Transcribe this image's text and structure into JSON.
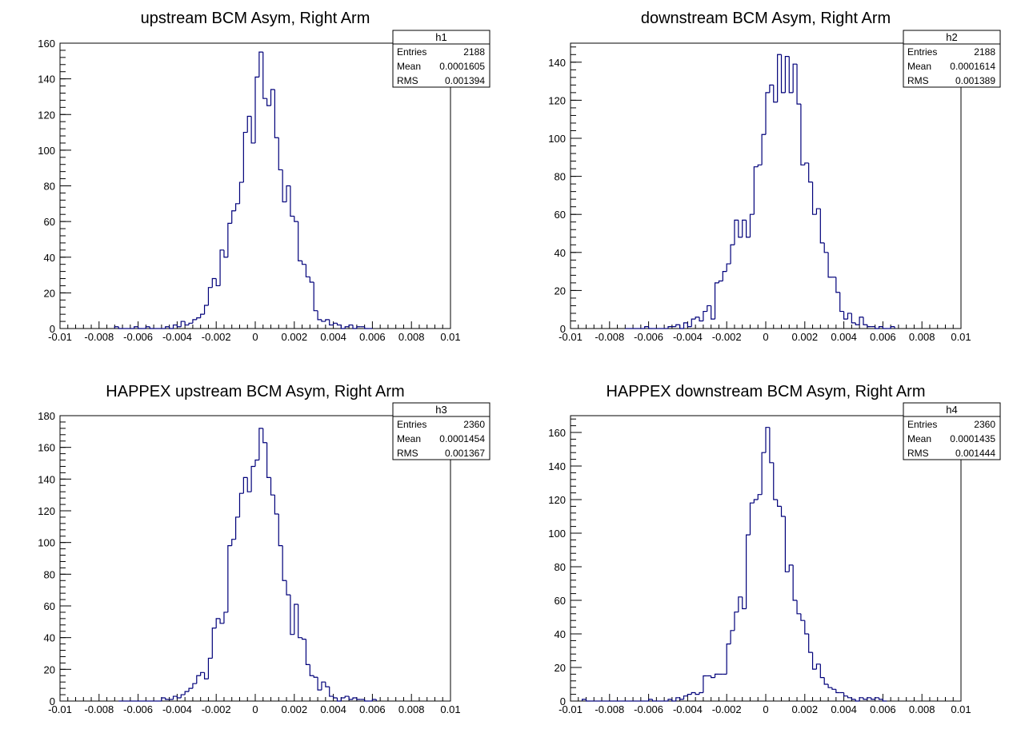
{
  "chart_data": [
    {
      "type": "bar",
      "title": "upstream BCM Asym, Right Arm",
      "stats": {
        "name": "h1",
        "entries_label": "Entries",
        "entries": "2188",
        "mean_label": "Mean",
        "mean": "0.0001605",
        "rms_label": "RMS",
        "rms": "0.001394"
      },
      "xlim": [
        -0.01,
        0.01
      ],
      "ylim": [
        0,
        160
      ],
      "x_ticks": [
        -0.01,
        -0.008,
        -0.006,
        -0.004,
        -0.002,
        0,
        0.002,
        0.004,
        0.006,
        0.008,
        0.01
      ],
      "x_tick_labels": [
        "-0.01",
        "-0.008",
        "-0.006",
        "-0.004",
        "-0.002",
        "0",
        "0.002",
        "0.004",
        "0.006",
        "0.008",
        "0.01"
      ],
      "y_ticks": [
        0,
        20,
        40,
        60,
        80,
        100,
        120,
        140,
        160
      ],
      "y_tick_labels": [
        "0",
        "20",
        "40",
        "60",
        "80",
        "100",
        "120",
        "140",
        "160"
      ],
      "bin_width": 0.0002,
      "bins": [
        [
          -0.0072,
          1
        ],
        [
          -0.007,
          0
        ],
        [
          -0.0068,
          0
        ],
        [
          -0.0066,
          0
        ],
        [
          -0.0064,
          0
        ],
        [
          -0.0062,
          1
        ],
        [
          -0.006,
          0
        ],
        [
          -0.0058,
          0
        ],
        [
          -0.0056,
          1
        ],
        [
          -0.0054,
          0
        ],
        [
          -0.0052,
          0
        ],
        [
          -0.005,
          0
        ],
        [
          -0.0048,
          0
        ],
        [
          -0.0046,
          1
        ],
        [
          -0.0044,
          0
        ],
        [
          -0.0042,
          2
        ],
        [
          -0.004,
          1
        ],
        [
          -0.0038,
          4
        ],
        [
          -0.0036,
          2
        ],
        [
          -0.0034,
          3
        ],
        [
          -0.0032,
          5
        ],
        [
          -0.003,
          6
        ],
        [
          -0.0028,
          8
        ],
        [
          -0.0026,
          13
        ],
        [
          -0.0024,
          23
        ],
        [
          -0.0022,
          28
        ],
        [
          -0.002,
          24
        ],
        [
          -0.0018,
          44
        ],
        [
          -0.0016,
          40
        ],
        [
          -0.0014,
          59
        ],
        [
          -0.0012,
          66
        ],
        [
          -0.001,
          70
        ],
        [
          -0.0008,
          82
        ],
        [
          -0.0006,
          110
        ],
        [
          -0.0004,
          119
        ],
        [
          -0.0002,
          104
        ],
        [
          0.0,
          141
        ],
        [
          0.0002,
          155
        ],
        [
          0.0004,
          129
        ],
        [
          0.0006,
          125
        ],
        [
          0.0008,
          134
        ],
        [
          0.001,
          107
        ],
        [
          0.0012,
          89
        ],
        [
          0.0014,
          71
        ],
        [
          0.0016,
          80
        ],
        [
          0.0018,
          63
        ],
        [
          0.002,
          60
        ],
        [
          0.0022,
          38
        ],
        [
          0.0024,
          36
        ],
        [
          0.0026,
          29
        ],
        [
          0.0028,
          26
        ],
        [
          0.003,
          10
        ],
        [
          0.0032,
          5
        ],
        [
          0.0034,
          4
        ],
        [
          0.0036,
          5
        ],
        [
          0.0038,
          2
        ],
        [
          0.004,
          3
        ],
        [
          0.0042,
          2
        ],
        [
          0.0044,
          0
        ],
        [
          0.0046,
          1
        ],
        [
          0.0048,
          2
        ],
        [
          0.005,
          0
        ],
        [
          0.0052,
          1
        ],
        [
          0.0054,
          1
        ],
        [
          0.0056,
          0
        ],
        [
          0.0058,
          0
        ]
      ]
    },
    {
      "type": "bar",
      "title": "downstream BCM Asym, Right Arm",
      "stats": {
        "name": "h2",
        "entries_label": "Entries",
        "entries": "2188",
        "mean_label": "Mean",
        "mean": "0.0001614",
        "rms_label": "RMS",
        "rms": "0.001389"
      },
      "xlim": [
        -0.01,
        0.01
      ],
      "ylim": [
        0,
        150
      ],
      "x_ticks": [
        -0.01,
        -0.008,
        -0.006,
        -0.004,
        -0.002,
        0,
        0.002,
        0.004,
        0.006,
        0.008,
        0.01
      ],
      "x_tick_labels": [
        "-0.01",
        "-0.008",
        "-0.006",
        "-0.004",
        "-0.002",
        "0",
        "0.002",
        "0.004",
        "0.006",
        "0.008",
        "0.01"
      ],
      "y_ticks": [
        0,
        20,
        40,
        60,
        80,
        100,
        120,
        140
      ],
      "y_tick_labels": [
        "0",
        "20",
        "40",
        "60",
        "80",
        "100",
        "120",
        "140"
      ],
      "bin_width": 0.0002,
      "bins": [
        [
          -0.0072,
          0
        ],
        [
          -0.007,
          0
        ],
        [
          -0.0068,
          0
        ],
        [
          -0.0066,
          0
        ],
        [
          -0.0064,
          0
        ],
        [
          -0.0062,
          1
        ],
        [
          -0.006,
          0
        ],
        [
          -0.0058,
          0
        ],
        [
          -0.0056,
          0
        ],
        [
          -0.0054,
          0
        ],
        [
          -0.0052,
          0
        ],
        [
          -0.005,
          1
        ],
        [
          -0.0048,
          1
        ],
        [
          -0.0046,
          2
        ],
        [
          -0.0044,
          0
        ],
        [
          -0.0042,
          3
        ],
        [
          -0.004,
          1
        ],
        [
          -0.0038,
          5
        ],
        [
          -0.0036,
          6
        ],
        [
          -0.0034,
          4
        ],
        [
          -0.0032,
          9
        ],
        [
          -0.003,
          12
        ],
        [
          -0.0028,
          5
        ],
        [
          -0.0026,
          24
        ],
        [
          -0.0024,
          25
        ],
        [
          -0.0022,
          30
        ],
        [
          -0.002,
          34
        ],
        [
          -0.0018,
          44
        ],
        [
          -0.0016,
          57
        ],
        [
          -0.0014,
          48
        ],
        [
          -0.0012,
          57
        ],
        [
          -0.001,
          48
        ],
        [
          -0.0008,
          60
        ],
        [
          -0.0006,
          85
        ],
        [
          -0.0004,
          86
        ],
        [
          -0.0002,
          102
        ],
        [
          0.0,
          124
        ],
        [
          0.0002,
          128
        ],
        [
          0.0004,
          119
        ],
        [
          0.0006,
          144
        ],
        [
          0.0008,
          124
        ],
        [
          0.001,
          143
        ],
        [
          0.0012,
          124
        ],
        [
          0.0014,
          139
        ],
        [
          0.0016,
          118
        ],
        [
          0.0018,
          86
        ],
        [
          0.002,
          87
        ],
        [
          0.0022,
          77
        ],
        [
          0.0024,
          60
        ],
        [
          0.0026,
          63
        ],
        [
          0.0028,
          45
        ],
        [
          0.003,
          40
        ],
        [
          0.0032,
          27
        ],
        [
          0.0034,
          27
        ],
        [
          0.0036,
          19
        ],
        [
          0.0038,
          9
        ],
        [
          0.004,
          5
        ],
        [
          0.0042,
          8
        ],
        [
          0.0044,
          3
        ],
        [
          0.0046,
          2
        ],
        [
          0.0048,
          6
        ],
        [
          0.005,
          2
        ],
        [
          0.0052,
          1
        ],
        [
          0.0054,
          1
        ],
        [
          0.0056,
          0
        ],
        [
          0.0058,
          1
        ],
        [
          0.006,
          0
        ],
        [
          0.0062,
          0
        ],
        [
          0.0064,
          1
        ]
      ]
    },
    {
      "type": "bar",
      "title": "HAPPEX upstream BCM Asym, Right Arm",
      "stats": {
        "name": "h3",
        "entries_label": "Entries",
        "entries": "2360",
        "mean_label": "Mean",
        "mean": "0.0001454",
        "rms_label": "RMS",
        "rms": "0.001367"
      },
      "xlim": [
        -0.01,
        0.01
      ],
      "ylim": [
        0,
        180
      ],
      "x_ticks": [
        -0.01,
        -0.008,
        -0.006,
        -0.004,
        -0.002,
        0,
        0.002,
        0.004,
        0.006,
        0.008,
        0.01
      ],
      "x_tick_labels": [
        "-0.01",
        "-0.008",
        "-0.006",
        "-0.004",
        "-0.002",
        "0",
        "0.002",
        "0.004",
        "0.006",
        "0.008",
        "0.01"
      ],
      "y_ticks": [
        0,
        20,
        40,
        60,
        80,
        100,
        120,
        140,
        160,
        180
      ],
      "y_tick_labels": [
        "0",
        "20",
        "40",
        "60",
        "80",
        "100",
        "120",
        "140",
        "160",
        "180"
      ],
      "bin_width": 0.0002,
      "bins": [
        [
          -0.007,
          0
        ],
        [
          -0.0068,
          0
        ],
        [
          -0.0066,
          0
        ],
        [
          -0.0064,
          0
        ],
        [
          -0.0062,
          0
        ],
        [
          -0.006,
          0
        ],
        [
          -0.0058,
          0
        ],
        [
          -0.0056,
          0
        ],
        [
          -0.0054,
          0
        ],
        [
          -0.0052,
          0
        ],
        [
          -0.005,
          0
        ],
        [
          -0.0048,
          2
        ],
        [
          -0.0046,
          1
        ],
        [
          -0.0044,
          1
        ],
        [
          -0.0042,
          3
        ],
        [
          -0.004,
          2
        ],
        [
          -0.0038,
          4
        ],
        [
          -0.0036,
          6
        ],
        [
          -0.0034,
          8
        ],
        [
          -0.0032,
          11
        ],
        [
          -0.003,
          16
        ],
        [
          -0.0028,
          18
        ],
        [
          -0.0026,
          14
        ],
        [
          -0.0024,
          27
        ],
        [
          -0.0022,
          46
        ],
        [
          -0.002,
          52
        ],
        [
          -0.0018,
          49
        ],
        [
          -0.0016,
          56
        ],
        [
          -0.0014,
          98
        ],
        [
          -0.0012,
          102
        ],
        [
          -0.001,
          116
        ],
        [
          -0.0008,
          131
        ],
        [
          -0.0006,
          141
        ],
        [
          -0.0004,
          132
        ],
        [
          -0.0002,
          148
        ],
        [
          0.0,
          152
        ],
        [
          0.0002,
          172
        ],
        [
          0.0004,
          163
        ],
        [
          0.0006,
          141
        ],
        [
          0.0008,
          130
        ],
        [
          0.001,
          118
        ],
        [
          0.0012,
          98
        ],
        [
          0.0014,
          76
        ],
        [
          0.0016,
          67
        ],
        [
          0.0018,
          42
        ],
        [
          0.002,
          61
        ],
        [
          0.0022,
          40
        ],
        [
          0.0024,
          39
        ],
        [
          0.0026,
          23
        ],
        [
          0.0028,
          16
        ],
        [
          0.003,
          15
        ],
        [
          0.0032,
          7
        ],
        [
          0.0034,
          12
        ],
        [
          0.0036,
          9
        ],
        [
          0.0038,
          3
        ],
        [
          0.004,
          2
        ],
        [
          0.0042,
          0
        ],
        [
          0.0044,
          2
        ],
        [
          0.0046,
          3
        ],
        [
          0.0048,
          1
        ],
        [
          0.005,
          2
        ],
        [
          0.0052,
          1
        ],
        [
          0.0054,
          1
        ],
        [
          0.0056,
          0
        ],
        [
          0.0058,
          0
        ],
        [
          0.006,
          1
        ]
      ]
    },
    {
      "type": "bar",
      "title": "HAPPEX downstream BCM Asym, Right Arm",
      "stats": {
        "name": "h4",
        "entries_label": "Entries",
        "entries": "2360",
        "mean_label": "Mean",
        "mean": "0.0001435",
        "rms_label": "RMS",
        "rms": "0.001444"
      },
      "xlim": [
        -0.01,
        0.01
      ],
      "ylim": [
        0,
        170
      ],
      "x_ticks": [
        -0.01,
        -0.008,
        -0.006,
        -0.004,
        -0.002,
        0,
        0.002,
        0.004,
        0.006,
        0.008,
        0.01
      ],
      "x_tick_labels": [
        "-0.01",
        "-0.008",
        "-0.006",
        "-0.004",
        "-0.002",
        "0",
        "0.002",
        "0.004",
        "0.006",
        "0.008",
        "0.01"
      ],
      "y_ticks": [
        0,
        20,
        40,
        60,
        80,
        100,
        120,
        140,
        160
      ],
      "y_tick_labels": [
        "0",
        "20",
        "40",
        "60",
        "80",
        "100",
        "120",
        "140",
        "160"
      ],
      "bin_width": 0.0002,
      "bins": [
        [
          -0.0094,
          1
        ],
        [
          -0.0092,
          0
        ],
        [
          -0.009,
          0
        ],
        [
          -0.0088,
          0
        ],
        [
          -0.0086,
          0
        ],
        [
          -0.0084,
          0
        ],
        [
          -0.0082,
          0
        ],
        [
          -0.008,
          0
        ],
        [
          -0.0078,
          0
        ],
        [
          -0.0076,
          0
        ],
        [
          -0.0074,
          0
        ],
        [
          -0.0072,
          0
        ],
        [
          -0.007,
          0
        ],
        [
          -0.0068,
          0
        ],
        [
          -0.0066,
          0
        ],
        [
          -0.0064,
          0
        ],
        [
          -0.0062,
          0
        ],
        [
          -0.006,
          1
        ],
        [
          -0.0058,
          0
        ],
        [
          -0.0056,
          0
        ],
        [
          -0.0054,
          0
        ],
        [
          -0.0052,
          0
        ],
        [
          -0.005,
          1
        ],
        [
          -0.0048,
          0
        ],
        [
          -0.0046,
          2
        ],
        [
          -0.0044,
          1
        ],
        [
          -0.0042,
          3
        ],
        [
          -0.004,
          4
        ],
        [
          -0.0038,
          5
        ],
        [
          -0.0036,
          4
        ],
        [
          -0.0034,
          5
        ],
        [
          -0.0032,
          15
        ],
        [
          -0.003,
          15
        ],
        [
          -0.0028,
          14
        ],
        [
          -0.0026,
          16
        ],
        [
          -0.0024,
          16
        ],
        [
          -0.0022,
          16
        ],
        [
          -0.002,
          34
        ],
        [
          -0.0018,
          42
        ],
        [
          -0.0016,
          53
        ],
        [
          -0.0014,
          62
        ],
        [
          -0.0012,
          55
        ],
        [
          -0.001,
          99
        ],
        [
          -0.0008,
          118
        ],
        [
          -0.0006,
          120
        ],
        [
          -0.0004,
          123
        ],
        [
          -0.0002,
          148
        ],
        [
          0.0,
          163
        ],
        [
          0.0002,
          142
        ],
        [
          0.0004,
          120
        ],
        [
          0.0006,
          116
        ],
        [
          0.0008,
          110
        ],
        [
          0.001,
          77
        ],
        [
          0.0012,
          81
        ],
        [
          0.0014,
          60
        ],
        [
          0.0016,
          52
        ],
        [
          0.0018,
          48
        ],
        [
          0.002,
          40
        ],
        [
          0.0022,
          29
        ],
        [
          0.0024,
          19
        ],
        [
          0.0026,
          22
        ],
        [
          0.0028,
          14
        ],
        [
          0.003,
          10
        ],
        [
          0.0032,
          8
        ],
        [
          0.0034,
          7
        ],
        [
          0.0036,
          5
        ],
        [
          0.0038,
          5
        ],
        [
          0.004,
          3
        ],
        [
          0.0042,
          2
        ],
        [
          0.0044,
          1
        ],
        [
          0.0046,
          0
        ],
        [
          0.0048,
          2
        ],
        [
          0.005,
          1
        ],
        [
          0.0052,
          2
        ],
        [
          0.0054,
          1
        ],
        [
          0.0056,
          2
        ],
        [
          0.0058,
          1
        ],
        [
          0.006,
          0
        ]
      ]
    }
  ]
}
